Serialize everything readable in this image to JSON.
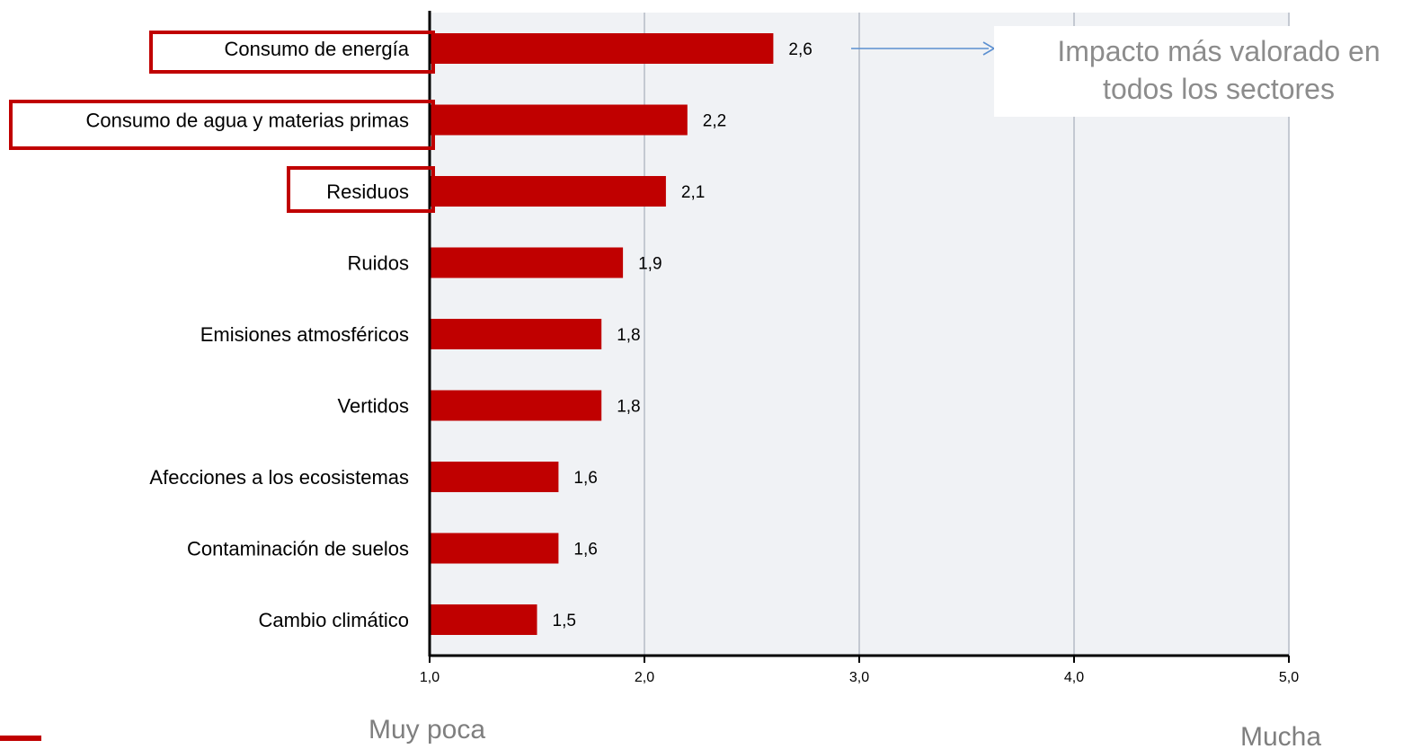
{
  "chart_data": {
    "type": "bar",
    "orientation": "horizontal",
    "categories": [
      "Consumo de energía",
      "Consumo de agua y materias primas",
      "Residuos",
      "Ruidos",
      "Emisiones atmosféricos",
      "Vertidos",
      "Afecciones a los ecosistemas",
      "Contaminación de suelos",
      "Cambio climático"
    ],
    "values": [
      2.6,
      2.2,
      2.1,
      1.9,
      1.8,
      1.8,
      1.6,
      1.6,
      1.5
    ],
    "value_labels": [
      "2,6",
      "2,2",
      "2,1",
      "1,9",
      "1,8",
      "1,8",
      "1,6",
      "1,6",
      "1,5"
    ],
    "highlighted_categories": [
      0,
      1,
      2
    ],
    "xlim": [
      1.0,
      5.0
    ],
    "xticks": [
      1.0,
      2.0,
      3.0,
      4.0,
      5.0
    ],
    "xtick_labels": [
      "1,0",
      "2,0",
      "3,0",
      "4,0",
      "5,0"
    ],
    "scale_low_label": "Muy poca",
    "scale_high_label": "Mucha",
    "annotation": {
      "lines": [
        "Impacto más valorado en",
        "todos los sectores"
      ],
      "target_category": 0
    },
    "grid": true,
    "colors": {
      "bar": "#c00000",
      "highlight_box": "#c00000",
      "plot_background": "#f0f2f5",
      "gridline": "#c4c9d2",
      "arrow": "#5b8fd0",
      "muted_text": "#8c8c8c"
    }
  }
}
